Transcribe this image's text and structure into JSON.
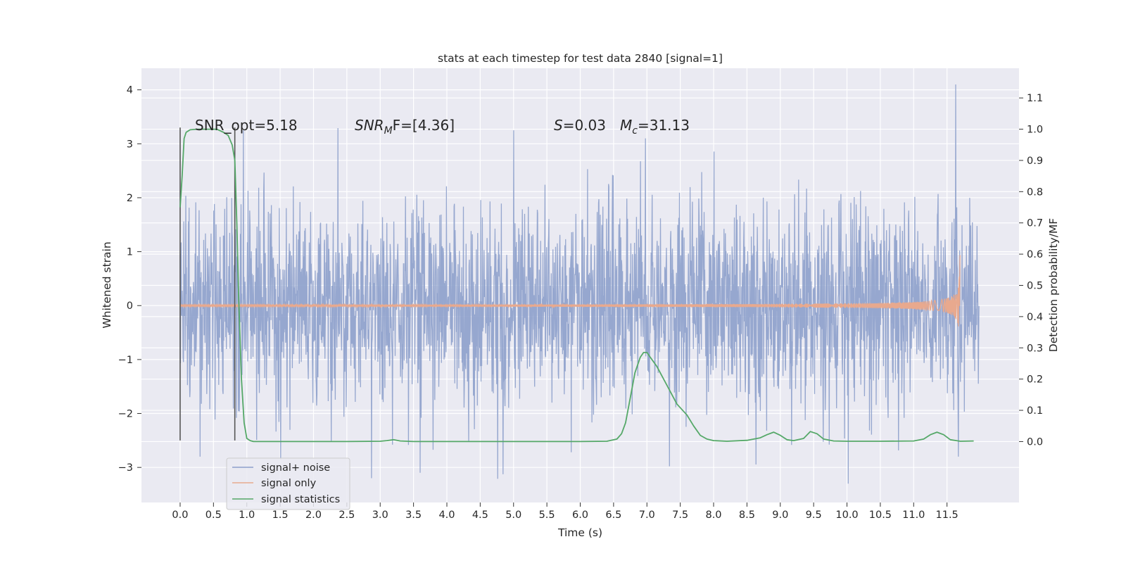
{
  "chart_data": {
    "type": "line",
    "title": "stats at each timestep for test data 2840 [signal=1]",
    "xlabel": "Time (s)",
    "ylabel": "Whitened strain",
    "ylabel_right": "Detection probability/MF",
    "xlim": [
      -0.58,
      12.58
    ],
    "ylim": [
      -3.65,
      4.4
    ],
    "ylim_right": [
      -0.195,
      1.195
    ],
    "x_ticks": [
      "0.0",
      "0.5",
      "1.0",
      "1.5",
      "2.0",
      "2.5",
      "3.0",
      "3.5",
      "4.0",
      "4.5",
      "5.0",
      "5.5",
      "6.0",
      "6.5",
      "7.0",
      "7.5",
      "8.0",
      "8.5",
      "9.0",
      "9.5",
      "10.0",
      "10.5",
      "11.0",
      "11.5"
    ],
    "y_ticks": [
      "−3",
      "−2",
      "−1",
      "0",
      "1",
      "2",
      "3",
      "4"
    ],
    "y_ticks_right": [
      "0.0",
      "0.1",
      "0.2",
      "0.3",
      "0.4",
      "0.5",
      "0.6",
      "0.7",
      "0.8",
      "0.9",
      "1.0",
      "1.1"
    ],
    "grid": true,
    "legend_position": "lower-left",
    "annotations": [
      {
        "text": "SNR_opt=5.18",
        "x": 0.2,
        "y": 3.25
      },
      {
        "text": "SNR",
        "sub": "M",
        "suffix": "F=[4.36]",
        "x": 2.6,
        "y": 3.25
      },
      {
        "text": "S",
        "suffix": "=0.03",
        "x": 5.6,
        "y": 3.25
      },
      {
        "text": "M",
        "sub": "c",
        "suffix": "=31.13",
        "x": 6.6,
        "y": 3.25
      }
    ],
    "vertical_markers": {
      "x": [
        0.0,
        0.82
      ],
      "y_range": [
        -2.5,
        3.3
      ],
      "color": "#555555"
    },
    "series": [
      {
        "name": "signal+ noise",
        "color": "#8da0cb",
        "axis": "left",
        "x_range": [
          0.0,
          11.98
        ],
        "typical_amplitude": 1.0,
        "peak_max": 4.1,
        "peak_min": -3.3
      },
      {
        "name": "signal only",
        "color": "#e8a98e",
        "axis": "left",
        "x_range": [
          0.0,
          11.7
        ],
        "merger_time": 11.7,
        "peak_amplitude": 1.0
      },
      {
        "name": "signal statistics",
        "color": "#55a868",
        "axis": "right",
        "x": [
          0.0,
          0.03,
          0.06,
          0.09,
          0.15,
          0.25,
          0.4,
          0.55,
          0.65,
          0.72,
          0.78,
          0.82,
          0.85,
          0.88,
          0.92,
          0.96,
          1.0,
          1.05,
          1.1,
          1.5,
          2.0,
          2.5,
          3.0,
          3.1,
          3.2,
          3.3,
          3.5,
          4.0,
          5.0,
          6.0,
          6.4,
          6.55,
          6.62,
          6.68,
          6.75,
          6.82,
          6.9,
          6.95,
          7.0,
          7.05,
          7.15,
          7.3,
          7.45,
          7.6,
          7.7,
          7.8,
          7.9,
          8.0,
          8.2,
          8.5,
          8.7,
          8.8,
          8.9,
          9.0,
          9.1,
          9.2,
          9.35,
          9.45,
          9.55,
          9.65,
          9.8,
          10.0,
          10.5,
          11.0,
          11.15,
          11.25,
          11.35,
          11.45,
          11.55,
          11.7,
          11.9
        ],
        "y": [
          0.75,
          0.85,
          0.97,
          0.99,
          0.998,
          1.0,
          1.0,
          1.0,
          0.99,
          0.98,
          0.95,
          0.9,
          0.7,
          0.45,
          0.2,
          0.06,
          0.01,
          0.003,
          0.0,
          0.0,
          0.0,
          0.0,
          0.001,
          0.003,
          0.006,
          0.002,
          0.0,
          0.0,
          0.0,
          0.0,
          0.001,
          0.008,
          0.025,
          0.06,
          0.14,
          0.22,
          0.27,
          0.285,
          0.285,
          0.27,
          0.24,
          0.18,
          0.12,
          0.085,
          0.05,
          0.02,
          0.008,
          0.003,
          0.001,
          0.004,
          0.012,
          0.022,
          0.03,
          0.02,
          0.006,
          0.003,
          0.01,
          0.032,
          0.025,
          0.008,
          0.002,
          0.001,
          0.001,
          0.002,
          0.008,
          0.022,
          0.03,
          0.022,
          0.006,
          0.001,
          0.002
        ]
      }
    ]
  }
}
